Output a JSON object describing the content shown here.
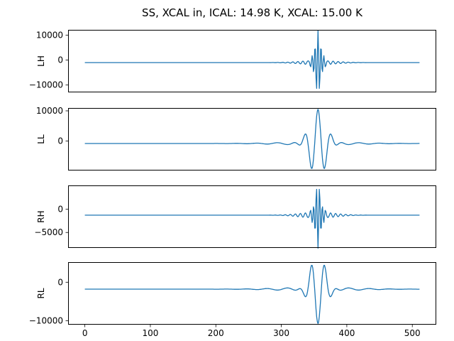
{
  "chart_data": {
    "type": "line",
    "title": "SS, XCAL in, ICAL: 14.98 K, XCAL: 15.00 K",
    "line_color": "#1f77b4",
    "grid": false,
    "legend": "none",
    "x": {
      "lim": [
        -25.6,
        536.6
      ],
      "ticks": [
        0,
        100,
        200,
        300,
        400,
        500
      ],
      "n_points": 512
    },
    "burst_center": 356,
    "subplots": [
      {
        "ylabel": "LH",
        "baseline": -1000,
        "amplitude": 12000,
        "freq": 0.22,
        "sigma": 5,
        "phase": 0,
        "ripple_amplitude": 900,
        "ripple_freq": 0.13,
        "ripple_sigma": 26,
        "ylim": [
          -12940,
          12140
        ],
        "yticks": [
          -10000,
          0,
          10000
        ],
        "peak_max": 11000,
        "peak_min": -11500
      },
      {
        "ylabel": "LL",
        "baseline": -800,
        "amplitude": 10800,
        "freq": 0.05,
        "sigma": 13,
        "phase": 0,
        "ripple_amplitude": 500,
        "ripple_freq": 0.032,
        "ripple_sigma": 55,
        "ylim": [
          -9730,
          10940
        ],
        "yticks": [
          0,
          10000
        ],
        "peak_max": 10000,
        "peak_min": -8800
      },
      {
        "ylabel": "RH",
        "baseline": -1300,
        "amplitude": 6400,
        "freq": 0.22,
        "sigma": 5,
        "phase": 3.141592653589793,
        "ripple_amplitude": 650,
        "ripple_freq": 0.13,
        "ripple_sigma": 26,
        "ylim": [
          -8310,
          5070
        ],
        "yticks": [
          -5000,
          0
        ],
        "peak_max": 5000,
        "peak_min": -7700
      },
      {
        "ylabel": "RL",
        "baseline": -1800,
        "amplitude": 8500,
        "freq": 0.05,
        "sigma": 12,
        "phase": 3.141592653589793,
        "ripple_amplitude": 450,
        "ripple_freq": 0.032,
        "ripple_sigma": 55,
        "ylim": [
          -11040,
          5230
        ],
        "yticks": [
          -10000,
          0
        ],
        "peak_max": 3600,
        "peak_min": -10300
      }
    ]
  }
}
